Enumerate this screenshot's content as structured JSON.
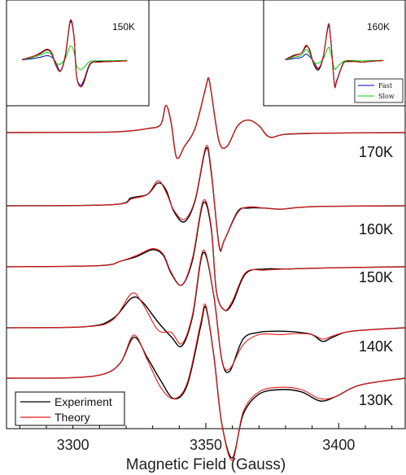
{
  "chart_data": {
    "type": "line",
    "xlabel": "Magnetic Field (Gauss)",
    "ylabel": "",
    "xlim": [
      3275,
      3425
    ],
    "xticks": [
      "3300",
      "3350",
      "3400"
    ],
    "xtick_values": [
      3300,
      3350,
      3400
    ],
    "grid": false,
    "legend": {
      "position": "bottom-left",
      "entries": [
        {
          "label": "Experiment",
          "color": "#000000"
        },
        {
          "label": "Theory",
          "color": "#e41a1c"
        }
      ]
    },
    "spectra": [
      {
        "temperature": "170K",
        "experiment": [
          [
            3275,
            0
          ],
          [
            3310,
            0.3
          ],
          [
            3320,
            1.2
          ],
          [
            3328,
            3.5
          ],
          [
            3333,
            7
          ],
          [
            3335,
            24
          ],
          [
            3337,
            8
          ],
          [
            3339,
            -22
          ],
          [
            3342,
            -12
          ],
          [
            3346,
            4
          ],
          [
            3350,
            40
          ],
          [
            3351,
            48
          ],
          [
            3352,
            36
          ],
          [
            3355,
            -8
          ],
          [
            3358,
            -12
          ],
          [
            3362,
            6
          ],
          [
            3366,
            11
          ],
          [
            3370,
            6
          ],
          [
            3374,
            -4
          ],
          [
            3380,
            -1.5
          ],
          [
            3395,
            -0.5
          ],
          [
            3425,
            0
          ]
        ],
        "theory": [
          [
            3275,
            0
          ],
          [
            3310,
            0.3
          ],
          [
            3320,
            1.2
          ],
          [
            3328,
            3.5
          ],
          [
            3333,
            7
          ],
          [
            3335,
            24
          ],
          [
            3337,
            8
          ],
          [
            3339,
            -22
          ],
          [
            3342,
            -12
          ],
          [
            3346,
            4
          ],
          [
            3350,
            40
          ],
          [
            3351,
            48
          ],
          [
            3352,
            36
          ],
          [
            3355,
            -8
          ],
          [
            3358,
            -12
          ],
          [
            3362,
            6
          ],
          [
            3366,
            11
          ],
          [
            3370,
            6
          ],
          [
            3374,
            -4
          ],
          [
            3380,
            -1.5
          ],
          [
            3395,
            -0.5
          ],
          [
            3425,
            0
          ]
        ]
      },
      {
        "temperature": "160K",
        "experiment": [
          [
            3275,
            0
          ],
          [
            3315,
            1
          ],
          [
            3322,
            7
          ],
          [
            3328,
            10
          ],
          [
            3332,
            20
          ],
          [
            3335,
            14
          ],
          [
            3338,
            -5
          ],
          [
            3342,
            -14
          ],
          [
            3346,
            5
          ],
          [
            3350,
            50
          ],
          [
            3352,
            30
          ],
          [
            3355,
            -35
          ],
          [
            3357,
            -30
          ],
          [
            3362,
            -5
          ],
          [
            3366,
            -2
          ],
          [
            3372,
            -2
          ],
          [
            3378,
            -3
          ],
          [
            3385,
            -1.5
          ],
          [
            3395,
            -0.5
          ],
          [
            3425,
            0
          ]
        ],
        "theory": [
          [
            3275,
            0
          ],
          [
            3315,
            1
          ],
          [
            3322,
            6
          ],
          [
            3328,
            10
          ],
          [
            3332,
            22
          ],
          [
            3335,
            12
          ],
          [
            3338,
            -4
          ],
          [
            3342,
            -12
          ],
          [
            3346,
            6
          ],
          [
            3350,
            52
          ],
          [
            3352,
            32
          ],
          [
            3355,
            -36
          ],
          [
            3357,
            -30
          ],
          [
            3362,
            -6
          ],
          [
            3366,
            -1
          ],
          [
            3372,
            -2
          ],
          [
            3378,
            -3
          ],
          [
            3385,
            -1.5
          ],
          [
            3395,
            -0.5
          ],
          [
            3425,
            0
          ]
        ]
      },
      {
        "temperature": "150K",
        "experiment": [
          [
            3275,
            0
          ],
          [
            3310,
            1
          ],
          [
            3318,
            5
          ],
          [
            3324,
            9
          ],
          [
            3330,
            15
          ],
          [
            3334,
            10
          ],
          [
            3337,
            -6
          ],
          [
            3341,
            -16
          ],
          [
            3345,
            6
          ],
          [
            3349,
            56
          ],
          [
            3352,
            34
          ],
          [
            3354,
            -22
          ],
          [
            3357,
            -38
          ],
          [
            3360,
            -32
          ],
          [
            3365,
            -6
          ],
          [
            3372,
            -2
          ],
          [
            3380,
            -2
          ],
          [
            3395,
            -1
          ],
          [
            3425,
            0
          ]
        ],
        "theory": [
          [
            3275,
            0
          ],
          [
            3310,
            1
          ],
          [
            3318,
            5
          ],
          [
            3324,
            10
          ],
          [
            3330,
            16
          ],
          [
            3334,
            11
          ],
          [
            3337,
            -5
          ],
          [
            3341,
            -16
          ],
          [
            3345,
            8
          ],
          [
            3349,
            58
          ],
          [
            3352,
            36
          ],
          [
            3354,
            -22
          ],
          [
            3357,
            -38
          ],
          [
            3360,
            -30
          ],
          [
            3365,
            -5
          ],
          [
            3372,
            -3
          ],
          [
            3380,
            -2
          ],
          [
            3395,
            -1
          ],
          [
            3425,
            0
          ]
        ]
      },
      {
        "temperature": "140K",
        "experiment": [
          [
            3275,
            0
          ],
          [
            3305,
            1
          ],
          [
            3315,
            8
          ],
          [
            3322,
            26
          ],
          [
            3326,
            23
          ],
          [
            3332,
            5
          ],
          [
            3337,
            -8
          ],
          [
            3341,
            -16
          ],
          [
            3345,
            10
          ],
          [
            3349,
            66
          ],
          [
            3353,
            28
          ],
          [
            3356,
            -28
          ],
          [
            3359,
            -38
          ],
          [
            3364,
            -10
          ],
          [
            3370,
            -4
          ],
          [
            3378,
            -3
          ],
          [
            3385,
            -4
          ],
          [
            3390,
            -6
          ],
          [
            3394,
            -12
          ],
          [
            3398,
            -8
          ],
          [
            3405,
            -3
          ],
          [
            3425,
            0
          ]
        ],
        "theory": [
          [
            3275,
            0
          ],
          [
            3305,
            1
          ],
          [
            3315,
            7
          ],
          [
            3322,
            30
          ],
          [
            3326,
            22
          ],
          [
            3332,
            -2
          ],
          [
            3337,
            -4
          ],
          [
            3341,
            -14
          ],
          [
            3345,
            12
          ],
          [
            3349,
            68
          ],
          [
            3353,
            28
          ],
          [
            3356,
            -28
          ],
          [
            3359,
            -36
          ],
          [
            3364,
            -15
          ],
          [
            3370,
            -6
          ],
          [
            3378,
            -6
          ],
          [
            3385,
            -5
          ],
          [
            3390,
            -6
          ],
          [
            3394,
            -10
          ],
          [
            3398,
            -7
          ],
          [
            3405,
            -3
          ],
          [
            3425,
            0
          ]
        ]
      },
      {
        "temperature": "130K",
        "experiment": [
          [
            3275,
            0
          ],
          [
            3300,
            0.5
          ],
          [
            3312,
            4
          ],
          [
            3318,
            14
          ],
          [
            3323,
            36
          ],
          [
            3328,
            18
          ],
          [
            3333,
            -2
          ],
          [
            3338,
            -18
          ],
          [
            3343,
            -6
          ],
          [
            3348,
            45
          ],
          [
            3350,
            62
          ],
          [
            3353,
            20
          ],
          [
            3356,
            -40
          ],
          [
            3360,
            -70
          ],
          [
            3364,
            -32
          ],
          [
            3370,
            -14
          ],
          [
            3378,
            -10
          ],
          [
            3386,
            -12
          ],
          [
            3393,
            -20
          ],
          [
            3399,
            -16
          ],
          [
            3408,
            -6
          ],
          [
            3425,
            0
          ]
        ],
        "theory": [
          [
            3275,
            0
          ],
          [
            3300,
            0.5
          ],
          [
            3312,
            4
          ],
          [
            3318,
            14
          ],
          [
            3323,
            38
          ],
          [
            3328,
            16
          ],
          [
            3333,
            -8
          ],
          [
            3338,
            -18
          ],
          [
            3343,
            -4
          ],
          [
            3348,
            48
          ],
          [
            3350,
            64
          ],
          [
            3353,
            20
          ],
          [
            3356,
            -40
          ],
          [
            3360,
            -72
          ],
          [
            3364,
            -30
          ],
          [
            3370,
            -12
          ],
          [
            3378,
            -8
          ],
          [
            3386,
            -10
          ],
          [
            3393,
            -18
          ],
          [
            3399,
            -16
          ],
          [
            3408,
            -6
          ],
          [
            3425,
            0
          ]
        ]
      }
    ],
    "insets": [
      {
        "title": "150K",
        "legend": null
      },
      {
        "title": "160K",
        "legend": [
          {
            "label": "Fast",
            "color": "#0000cc"
          },
          {
            "label": "Slow",
            "color": "#00cc00"
          }
        ]
      }
    ]
  }
}
